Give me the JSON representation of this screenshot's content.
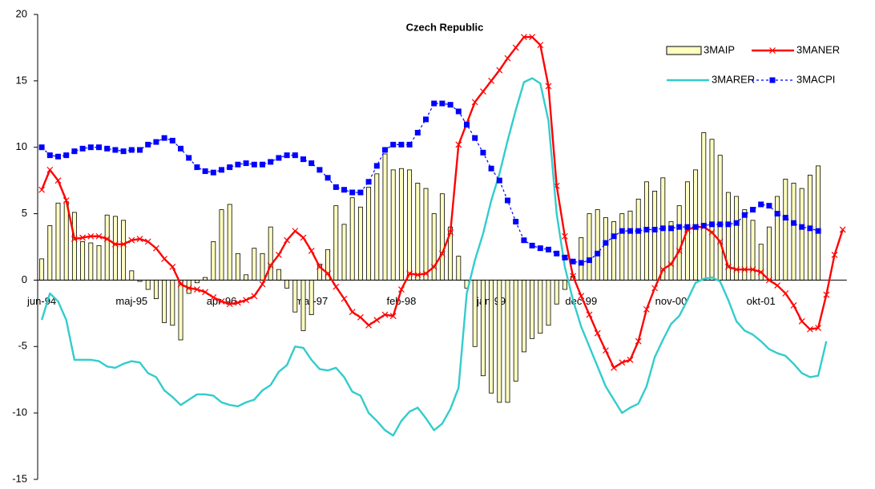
{
  "chart_data": {
    "type": "bar",
    "title": "Czech Republic",
    "categories": [
      "jun-94",
      null,
      null,
      null,
      null,
      null,
      null,
      null,
      null,
      null,
      null,
      "maj-95",
      null,
      null,
      null,
      null,
      null,
      null,
      null,
      null,
      null,
      null,
      "apr-96",
      null,
      null,
      null,
      null,
      null,
      null,
      null,
      null,
      null,
      null,
      "mar-97",
      null,
      null,
      null,
      null,
      null,
      null,
      null,
      null,
      null,
      null,
      "feb-98",
      null,
      null,
      null,
      null,
      null,
      null,
      null,
      null,
      null,
      null,
      "jan-99",
      null,
      null,
      null,
      null,
      null,
      null,
      null,
      null,
      null,
      null,
      "dec-99",
      null,
      null,
      null,
      null,
      null,
      null,
      null,
      null,
      null,
      null,
      "nov-00",
      null,
      null,
      null,
      null,
      null,
      null,
      null,
      null,
      null,
      null,
      "okt-01",
      null,
      null,
      null,
      null,
      null,
      null,
      null,
      null,
      null,
      null
    ],
    "ylim": [
      -15,
      20
    ],
    "yticks": [
      -15,
      -10,
      -5,
      0,
      5,
      10,
      15,
      20
    ],
    "grid": false,
    "legend": "top-right",
    "series": [
      {
        "name": "3MAIP",
        "type": "bar",
        "color": "#ffffc0",
        "values": [
          1.6,
          4.1,
          5.8,
          5.9,
          5.1,
          2.9,
          2.8,
          2.6,
          4.9,
          4.8,
          4.5,
          0.7,
          -0.1,
          -0.7,
          -1.4,
          -3.2,
          -3.4,
          -4.5,
          -1.0,
          -0.2,
          0.2,
          2.9,
          5.3,
          5.7,
          2.0,
          0.4,
          2.4,
          2.0,
          4.0,
          0.8,
          -0.6,
          -2.4,
          -3.8,
          -2.6,
          1.2,
          2.3,
          5.6,
          4.2,
          6.2,
          5.5,
          7.0,
          8.0,
          9.5,
          8.3,
          8.4,
          8.3,
          7.3,
          6.9,
          5.0,
          6.5,
          4.0,
          1.8,
          -0.6,
          -5.0,
          -7.2,
          -8.5,
          -9.2,
          -9.2,
          -7.6,
          -5.4,
          -4.4,
          -4.0,
          -3.4,
          -1.8,
          -0.7,
          0.3,
          3.2,
          5.0,
          5.3,
          4.7,
          4.4,
          5.0,
          5.2,
          6.1,
          7.4,
          6.7,
          7.7,
          4.4,
          5.6,
          7.4,
          8.3,
          11.1,
          10.6,
          9.4,
          6.6,
          6.3,
          5.3,
          4.5,
          2.7,
          4.0,
          6.3,
          7.6,
          7.3,
          6.9,
          7.9,
          8.6,
          null,
          null,
          null
        ]
      },
      {
        "name": "3MANER",
        "type": "line",
        "color": "#ff0000",
        "marker": "x",
        "dashed": false,
        "values": [
          6.8,
          8.3,
          7.5,
          6.0,
          3.1,
          3.2,
          3.3,
          3.3,
          3.1,
          2.7,
          2.7,
          3.0,
          3.1,
          2.9,
          2.4,
          1.6,
          1.0,
          -0.3,
          -0.6,
          -0.7,
          -0.9,
          -1.3,
          -1.6,
          -1.8,
          -1.7,
          -1.5,
          -1.2,
          -0.3,
          1.1,
          1.9,
          3.0,
          3.7,
          3.2,
          2.2,
          1.0,
          0.5,
          -0.5,
          -1.4,
          -2.4,
          -2.8,
          -3.4,
          -3.0,
          -2.6,
          -2.7,
          -0.7,
          0.5,
          0.4,
          0.5,
          1.0,
          2.0,
          3.6,
          10.2,
          11.8,
          13.4,
          14.2,
          15.0,
          15.8,
          16.7,
          17.5,
          18.3,
          18.3,
          17.7,
          14.6,
          7.1,
          3.3,
          0.3,
          -1.2,
          -2.6,
          -4.0,
          -5.3,
          -6.6,
          -6.2,
          -6.0,
          -4.6,
          -2.2,
          -0.6,
          0.8,
          1.2,
          2.2,
          3.8,
          4.0,
          4.0,
          3.6,
          2.9,
          1.0,
          0.8,
          0.8,
          0.8,
          0.6,
          0.0,
          -0.4,
          -1.0,
          -1.9,
          -3.1,
          -3.7,
          -3.6,
          -1.1,
          1.9,
          3.8
        ]
      },
      {
        "name": "3MARER",
        "type": "line",
        "color": "#33cccc",
        "marker": null,
        "dashed": false,
        "values": [
          -3.0,
          -1.0,
          -1.6,
          -3.0,
          -6.0,
          -6.0,
          -6.0,
          -6.1,
          -6.5,
          -6.6,
          -6.3,
          -6.1,
          -6.2,
          -7.0,
          -7.3,
          -8.3,
          -8.8,
          -9.4,
          -9.0,
          -8.6,
          -8.6,
          -8.7,
          -9.2,
          -9.4,
          -9.5,
          -9.2,
          -9.0,
          -8.3,
          -7.9,
          -6.9,
          -6.4,
          -5.0,
          -5.1,
          -6.0,
          -6.7,
          -6.8,
          -6.6,
          -7.3,
          -8.4,
          -8.7,
          -10.0,
          -10.6,
          -11.3,
          -11.7,
          -10.6,
          -9.9,
          -9.6,
          -10.4,
          -11.3,
          -10.8,
          -9.7,
          -8.1,
          -1.0,
          1.5,
          3.5,
          6.0,
          8.0,
          10.5,
          12.8,
          14.9,
          15.2,
          14.8,
          12.0,
          5.0,
          1.0,
          -1.5,
          -3.5,
          -5.0,
          -6.5,
          -8.0,
          -9.0,
          -10.0,
          -9.6,
          -9.3,
          -8.0,
          -5.8,
          -4.5,
          -3.3,
          -2.7,
          -1.5,
          -0.2,
          0.1,
          0.2,
          -0.1,
          -1.5,
          -3.1,
          -3.8,
          -4.1,
          -4.6,
          -5.2,
          -5.5,
          -5.7,
          -6.3,
          -7.0,
          -7.3,
          -7.2,
          -4.6,
          null,
          null
        ]
      },
      {
        "name": "3MACPI",
        "type": "line",
        "color": "#0000ff",
        "marker": "square",
        "dashed": true,
        "values": [
          10.0,
          9.4,
          9.3,
          9.4,
          9.7,
          9.9,
          10.0,
          10.0,
          9.9,
          9.8,
          9.7,
          9.8,
          9.8,
          10.2,
          10.4,
          10.7,
          10.5,
          9.9,
          9.2,
          8.5,
          8.2,
          8.1,
          8.3,
          8.5,
          8.7,
          8.8,
          8.7,
          8.7,
          8.9,
          9.2,
          9.4,
          9.4,
          9.1,
          8.8,
          8.3,
          7.7,
          7.0,
          6.8,
          6.6,
          6.6,
          7.4,
          8.6,
          9.8,
          10.2,
          10.2,
          10.2,
          11.1,
          12.1,
          13.3,
          13.3,
          13.2,
          12.7,
          11.7,
          10.7,
          9.6,
          8.4,
          7.5,
          6.0,
          4.4,
          3.0,
          2.6,
          2.4,
          2.3,
          2.0,
          1.7,
          1.4,
          1.3,
          1.5,
          2.0,
          2.8,
          3.3,
          3.7,
          3.7,
          3.7,
          3.8,
          3.8,
          3.9,
          3.9,
          4.0,
          4.0,
          4.0,
          4.1,
          4.2,
          4.2,
          4.2,
          4.3,
          4.9,
          5.3,
          5.7,
          5.6,
          5.0,
          4.7,
          4.3,
          4.0,
          3.9,
          3.7,
          null,
          null,
          null
        ]
      }
    ]
  }
}
